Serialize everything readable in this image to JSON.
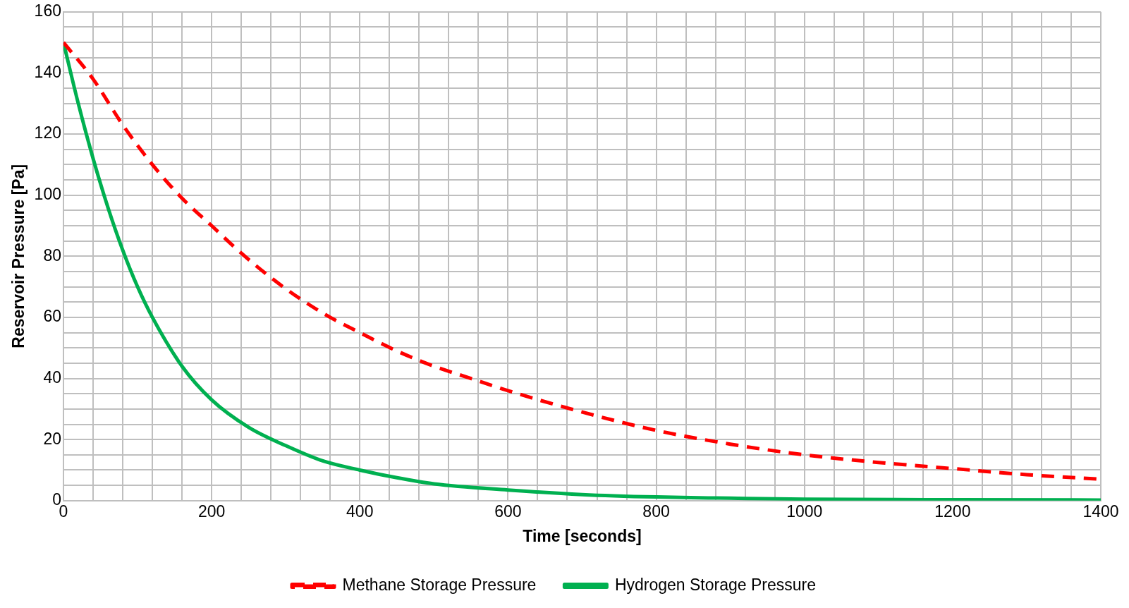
{
  "chart_data": {
    "type": "line",
    "xlabel": "Time [seconds]",
    "ylabel": "Reservoir Pressure [Pa]",
    "xlim": [
      0,
      1400
    ],
    "ylim": [
      0,
      160
    ],
    "xticks": [
      0,
      {
        "value": 40,
        "label": null
      },
      {
        "value": 80,
        "label": null
      },
      {
        "value": 120,
        "label": null
      },
      {
        "value": 160,
        "label": null
      },
      200,
      {
        "value": 240,
        "label": null
      },
      {
        "value": 280,
        "label": null
      },
      {
        "value": 320,
        "label": null
      },
      {
        "value": 360,
        "label": null
      },
      400,
      {
        "value": 440,
        "label": null
      },
      {
        "value": 480,
        "label": null
      },
      {
        "value": 520,
        "label": null
      },
      {
        "value": 560,
        "label": null
      },
      600,
      {
        "value": 640,
        "label": null
      },
      {
        "value": 680,
        "label": null
      },
      {
        "value": 720,
        "label": null
      },
      {
        "value": 760,
        "label": null
      },
      800,
      {
        "value": 840,
        "label": null
      },
      {
        "value": 880,
        "label": null
      },
      {
        "value": 920,
        "label": null
      },
      {
        "value": 960,
        "label": null
      },
      1000,
      {
        "value": 1040,
        "label": null
      },
      {
        "value": 1080,
        "label": null
      },
      {
        "value": 1120,
        "label": null
      },
      {
        "value": 1160,
        "label": null
      },
      1200,
      {
        "value": 1240,
        "label": null
      },
      {
        "value": 1280,
        "label": null
      },
      {
        "value": 1320,
        "label": null
      },
      {
        "value": 1360,
        "label": null
      },
      1400
    ],
    "yticks": [
      0,
      {
        "value": 5,
        "label": null
      },
      {
        "value": 10,
        "label": null
      },
      {
        "value": 15,
        "label": null
      },
      20,
      {
        "value": 25,
        "label": null
      },
      {
        "value": 30,
        "label": null
      },
      {
        "value": 35,
        "label": null
      },
      40,
      {
        "value": 45,
        "label": null
      },
      {
        "value": 50,
        "label": null
      },
      {
        "value": 55,
        "label": null
      },
      60,
      {
        "value": 65,
        "label": null
      },
      {
        "value": 70,
        "label": null
      },
      {
        "value": 75,
        "label": null
      },
      80,
      {
        "value": 85,
        "label": null
      },
      {
        "value": 90,
        "label": null
      },
      {
        "value": 95,
        "label": null
      },
      100,
      {
        "value": 105,
        "label": null
      },
      {
        "value": 110,
        "label": null
      },
      {
        "value": 115,
        "label": null
      },
      120,
      {
        "value": 125,
        "label": null
      },
      {
        "value": 130,
        "label": null
      },
      {
        "value": 135,
        "label": null
      },
      140,
      {
        "value": 145,
        "label": null
      },
      {
        "value": 150,
        "label": null
      },
      {
        "value": 155,
        "label": null
      },
      160
    ],
    "grid": true,
    "legend": "bottom",
    "marker": "none",
    "series": [
      {
        "name": "Methane Storage Pressure",
        "color": "#ff0000",
        "line_style": "dashed",
        "x": [
          0,
          40,
          80,
          120,
          160,
          200,
          240,
          280,
          320,
          360,
          400,
          450,
          500,
          550,
          600,
          700,
          800,
          900,
          1000,
          1100,
          1200,
          1300,
          1400
        ],
        "values": [
          150,
          138,
          123,
          110,
          99,
          90,
          81,
          73,
          66,
          60,
          55,
          49,
          44,
          40,
          36,
          29,
          23,
          18.5,
          15,
          12.5,
          10.5,
          8.5,
          7
        ]
      },
      {
        "name": "Hydrogen Storage Pressure",
        "color": "#00b050",
        "line_style": "solid",
        "x": [
          0,
          20,
          40,
          60,
          80,
          100,
          120,
          160,
          200,
          250,
          300,
          350,
          400,
          450,
          500,
          600,
          700,
          800,
          900,
          1000,
          1200,
          1400
        ],
        "values": [
          150,
          130,
          112,
          96,
          82,
          70,
          60,
          44,
          33,
          24,
          18,
          13,
          10,
          7.5,
          5.5,
          3.5,
          2,
          1.2,
          0.8,
          0.5,
          0.3,
          0.2
        ]
      }
    ]
  }
}
